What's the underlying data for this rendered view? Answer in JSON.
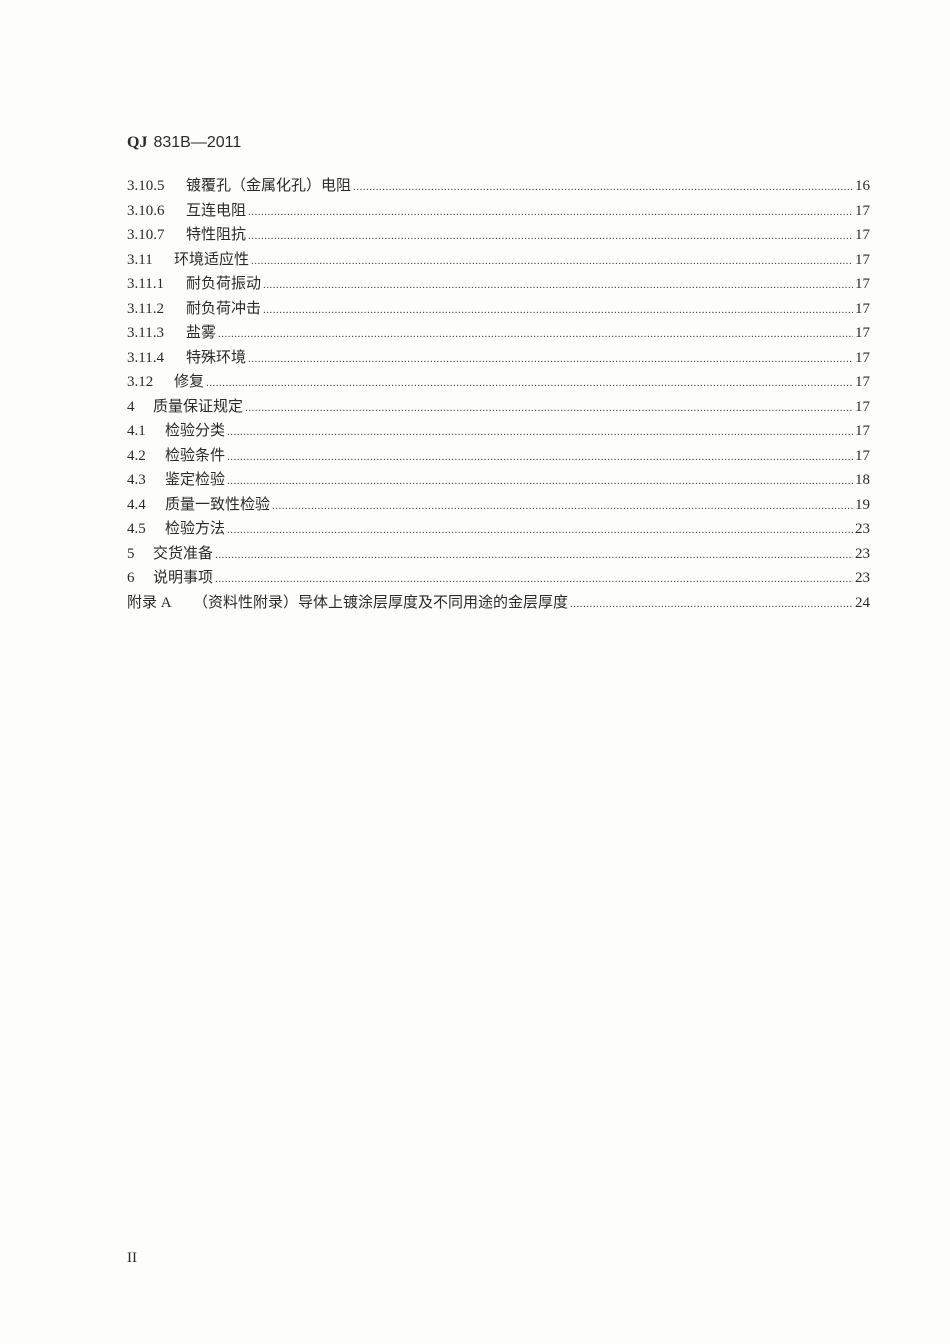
{
  "header": {
    "prefix": "QJ",
    "code": "831B—2011"
  },
  "toc": [
    {
      "num": "3.10.5",
      "title": "镀覆孔（金属化孔）电阻",
      "page": "16",
      "indent": 3
    },
    {
      "num": "3.10.6",
      "title": "互连电阻",
      "page": "17",
      "indent": 3
    },
    {
      "num": "3.10.7",
      "title": "特性阻抗",
      "page": "17",
      "indent": 3
    },
    {
      "num": "3.11",
      "title": "环境适应性",
      "page": "17",
      "indent": 2
    },
    {
      "num": "3.11.1",
      "title": "耐负荷振动",
      "page": "17",
      "indent": 3
    },
    {
      "num": "3.11.2",
      "title": "耐负荷冲击",
      "page": "17",
      "indent": 3
    },
    {
      "num": "3.11.3",
      "title": "盐雾",
      "page": "17",
      "indent": 3
    },
    {
      "num": "3.11.4",
      "title": "特殊环境",
      "page": "17",
      "indent": 3
    },
    {
      "num": "3.12",
      "title": "修复",
      "page": "17",
      "indent": 2
    },
    {
      "num": "4",
      "title": "质量保证规定",
      "page": "17",
      "indent": 0
    },
    {
      "num": "4.1",
      "title": "检验分类",
      "page": "17",
      "indent": 1
    },
    {
      "num": "4.2",
      "title": "检验条件",
      "page": "17",
      "indent": 1
    },
    {
      "num": "4.3",
      "title": "鉴定检验",
      "page": "18",
      "indent": 1
    },
    {
      "num": "4.4",
      "title": "质量一致性检验",
      "page": "19",
      "indent": 1
    },
    {
      "num": "4.5",
      "title": "检验方法",
      "page": "23",
      "indent": 1
    },
    {
      "num": "5",
      "title": "交货准备",
      "page": "23",
      "indent": 0
    },
    {
      "num": "6",
      "title": "说明事项",
      "page": "23",
      "indent": 0
    },
    {
      "num": "附录 A",
      "title": "（资料性附录）导体上镀涂层厚度及不同用途的金层厚度",
      "page": "24",
      "indent": -1
    }
  ],
  "footer": {
    "page_number": "II"
  }
}
